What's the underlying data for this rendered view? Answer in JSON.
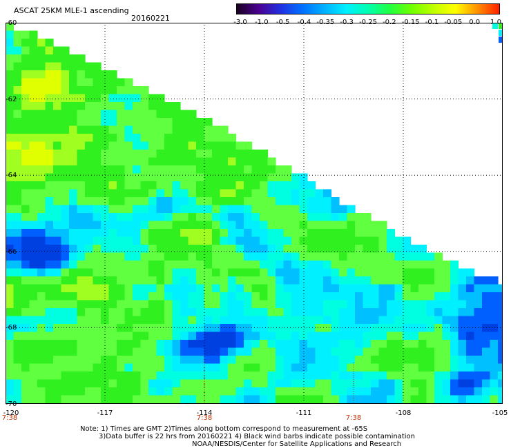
{
  "header": {
    "title": "ASCAT 25KM MLE-1 ascending",
    "date": "20160221"
  },
  "colorbar": {
    "tick_labels": [
      "-3.0",
      "-1.0",
      "-0.5",
      "-0.4",
      "-0.35",
      "-0.3",
      "-0.25",
      "-0.2",
      "-0.15",
      "-0.1",
      "-0.05",
      "0.0",
      "1.0"
    ],
    "colors": [
      "#1a0020",
      "#4a0090",
      "#2030e0",
      "#0070ff",
      "#00b0ff",
      "#00f0ff",
      "#00ffb0",
      "#20ff40",
      "#70ff00",
      "#c0ff00",
      "#ffff00",
      "#ff9000",
      "#ff2000"
    ]
  },
  "map": {
    "lat_labels": [
      "-60",
      "-62",
      "-64",
      "-66",
      "-68",
      "-70"
    ],
    "lon_labels": [
      "-120",
      "-117",
      "-114",
      "-111",
      "-108",
      "-105"
    ],
    "lon_range": [
      -120,
      -105
    ],
    "lat_range": [
      -60,
      -70
    ],
    "grid": "dotted",
    "time_labels": [
      {
        "lon": -120,
        "text": "7:38"
      },
      {
        "lon": -114,
        "text": "7:38"
      },
      {
        "lon": -109.5,
        "text": "7:38"
      }
    ],
    "swath_edge": [
      [
        -120,
        -60.0
      ],
      [
        -118.5,
        -60.5
      ],
      [
        -116.5,
        -61.4
      ],
      [
        -114.2,
        -62.4
      ],
      [
        -112.0,
        -63.5
      ],
      [
        -109.8,
        -64.7
      ],
      [
        -108.0,
        -65.6
      ],
      [
        -106.5,
        -66.3
      ],
      [
        -105.0,
        -66.8
      ]
    ],
    "colors": {
      "green": "#30f020",
      "light_green": "#60ff40",
      "cyan": "#00ffe0",
      "aqua": "#00f0ff",
      "light_blue": "#00c0ff",
      "blue": "#0060ff",
      "dark_blue": "#0040e0",
      "yellow_green": "#a0ff20",
      "yellow": "#e0ff00"
    }
  },
  "notes": {
    "line1": "Note: 1) Times are GMT 2)Times along bottom correspond to measurement at -65S",
    "line2": "3)Data buffer is 22 hrs from 20160221 4) Black wind barbs indicate possible contamination",
    "line3": "NOAA/NESDIS/Center for Satellite Applications and Research"
  }
}
